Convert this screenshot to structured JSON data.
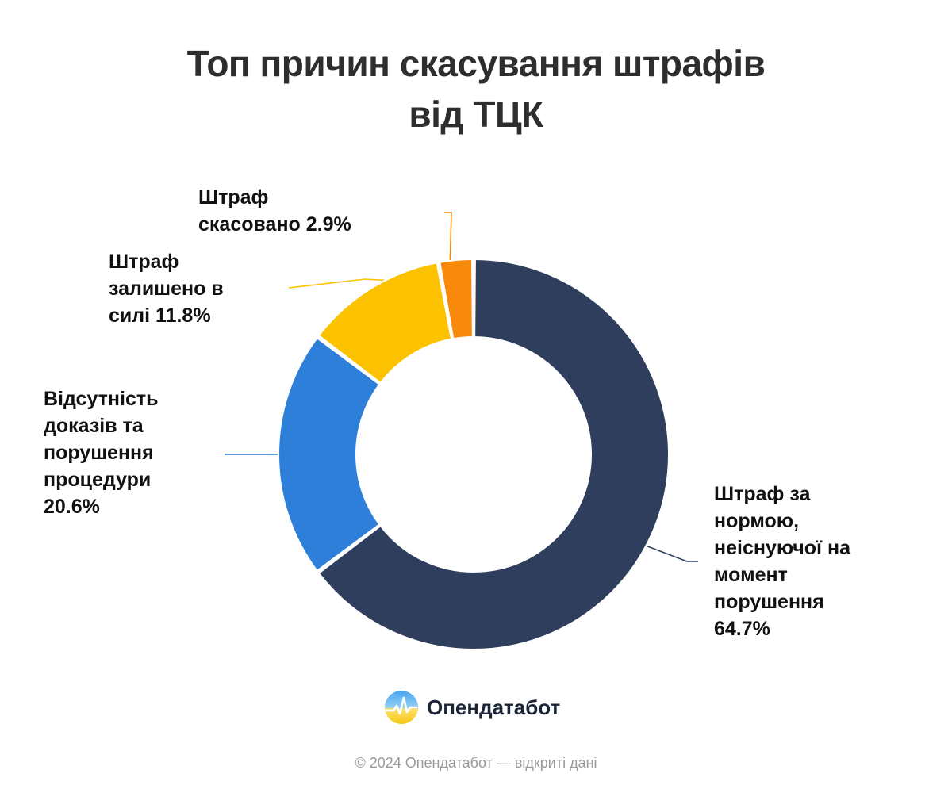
{
  "title": {
    "line1": "Топ причин скасування штрафів",
    "line2": "від ТЦК"
  },
  "chart_data": {
    "type": "pie",
    "variant": "donut",
    "title": "Топ причин скасування штрафів від ТЦК",
    "series": [
      {
        "name": "Штраф за нормою, неіснуючої на момент порушення",
        "value": 64.7,
        "value_label": "64.7%",
        "color": "#2f3e5d",
        "label_lines": [
          "Штраф за",
          "нормою,",
          "неіснуючої на",
          "момент",
          "порушення",
          "64.7%"
        ]
      },
      {
        "name": "Відсутність доказів та порушення процедури",
        "value": 20.6,
        "value_label": "20.6%",
        "color": "#2d7fd9",
        "label_lines": [
          "Відсутність",
          "доказів та",
          "порушення",
          "процедури",
          "20.6%"
        ]
      },
      {
        "name": "Штраф залишено в силі",
        "value": 11.8,
        "value_label": "11.8%",
        "color": "#fcc200",
        "label_lines": [
          "Штраф",
          "залишено в",
          "силі 11.8%"
        ]
      },
      {
        "name": "Штраф скасовано",
        "value": 2.9,
        "value_label": "2.9%",
        "color": "#f9890a",
        "label_lines": [
          "Штраф",
          "скасовано 2.9%"
        ]
      }
    ],
    "legend": "none"
  },
  "brand": {
    "name": "Опендатабот",
    "logo_icon": "opendatabot-logo-icon"
  },
  "footer": {
    "copyright": "© 2024 Опендатабот — відкриті дані"
  }
}
